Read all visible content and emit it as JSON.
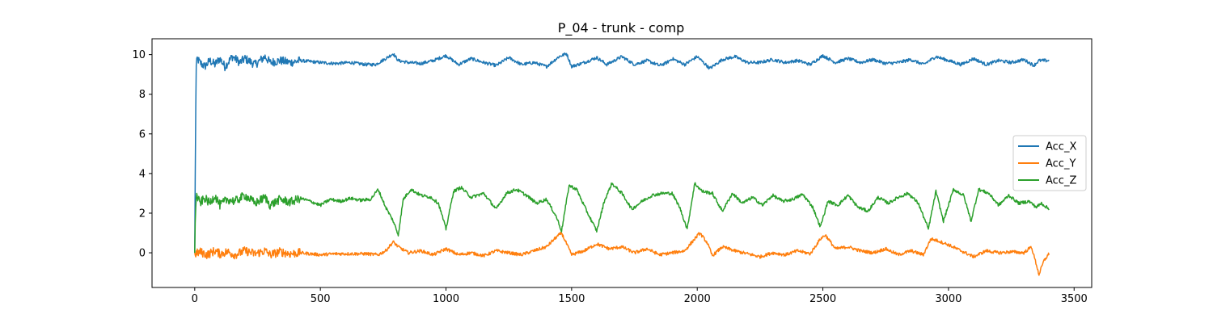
{
  "chart_data": {
    "type": "line",
    "title": "P_04 - trunk - comp",
    "xlabel": "",
    "ylabel": "",
    "xlim": [
      -170,
      3570
    ],
    "ylim": [
      -1.75,
      10.8
    ],
    "xticks": [
      0,
      500,
      1000,
      1500,
      2000,
      2500,
      3000,
      3500
    ],
    "yticks": [
      0,
      2,
      4,
      6,
      8,
      10
    ],
    "grid": false,
    "legend_position": "center-right",
    "series": [
      {
        "name": "Acc_X",
        "color": "#1f77b4",
        "x": [
          0,
          5,
          10,
          20,
          40,
          60,
          80,
          100,
          120,
          150,
          180,
          200,
          240,
          280,
          300,
          340,
          380,
          420,
          460,
          500,
          560,
          620,
          680,
          720,
          760,
          790,
          810,
          850,
          900,
          950,
          1000,
          1050,
          1100,
          1150,
          1200,
          1250,
          1300,
          1350,
          1400,
          1450,
          1480,
          1500,
          1550,
          1600,
          1640,
          1700,
          1750,
          1800,
          1850,
          1880,
          1900,
          1950,
          2000,
          2050,
          2100,
          2150,
          2200,
          2250,
          2300,
          2350,
          2400,
          2450,
          2500,
          2550,
          2600,
          2650,
          2700,
          2750,
          2800,
          2850,
          2900,
          2950,
          3000,
          3050,
          3100,
          3150,
          3200,
          3250,
          3300,
          3340,
          3360,
          3400
        ],
        "values": [
          0,
          9.3,
          9.8,
          9.6,
          9.4,
          9.7,
          9.5,
          9.8,
          9.4,
          9.9,
          9.6,
          9.8,
          9.5,
          9.9,
          9.6,
          9.7,
          9.6,
          9.7,
          9.65,
          9.6,
          9.55,
          9.6,
          9.5,
          9.5,
          9.8,
          10.05,
          9.7,
          9.6,
          9.55,
          9.7,
          9.95,
          9.5,
          9.8,
          9.6,
          9.45,
          9.85,
          9.5,
          9.6,
          9.4,
          9.9,
          10.05,
          9.4,
          9.6,
          9.85,
          9.5,
          9.9,
          9.5,
          9.7,
          9.45,
          9.6,
          9.8,
          9.5,
          9.9,
          9.3,
          9.75,
          9.9,
          9.6,
          9.6,
          9.75,
          9.6,
          9.7,
          9.5,
          9.95,
          9.6,
          9.8,
          9.6,
          9.75,
          9.55,
          9.6,
          9.75,
          9.5,
          9.9,
          9.7,
          9.5,
          9.8,
          9.5,
          9.7,
          9.6,
          9.75,
          9.45,
          9.7,
          9.7
        ]
      },
      {
        "name": "Acc_Y",
        "color": "#ff7f0e",
        "x": [
          0,
          5,
          20,
          50,
          80,
          100,
          130,
          160,
          200,
          240,
          280,
          300,
          340,
          380,
          420,
          460,
          500,
          560,
          620,
          680,
          730,
          760,
          790,
          810,
          850,
          900,
          950,
          1000,
          1050,
          1100,
          1150,
          1200,
          1250,
          1300,
          1350,
          1400,
          1440,
          1460,
          1500,
          1550,
          1600,
          1650,
          1700,
          1750,
          1800,
          1850,
          1900,
          1950,
          1990,
          2010,
          2040,
          2060,
          2100,
          2150,
          2200,
          2250,
          2300,
          2350,
          2400,
          2450,
          2490,
          2510,
          2550,
          2600,
          2650,
          2700,
          2750,
          2800,
          2850,
          2900,
          2930,
          2960,
          3000,
          3050,
          3100,
          3150,
          3200,
          3250,
          3300,
          3330,
          3350,
          3360,
          3380,
          3400
        ],
        "values": [
          0,
          -0.05,
          0.05,
          -0.1,
          0.1,
          -0.05,
          0.05,
          -0.1,
          0.1,
          -0.05,
          0.1,
          -0.1,
          0.05,
          -0.05,
          0.0,
          -0.05,
          -0.1,
          -0.05,
          -0.05,
          -0.05,
          -0.1,
          0.1,
          0.55,
          0.3,
          0.0,
          0.1,
          -0.1,
          0.2,
          -0.1,
          0.0,
          -0.15,
          0.1,
          0.0,
          -0.1,
          0.1,
          0.3,
          0.8,
          1.0,
          -0.1,
          0.1,
          0.45,
          0.2,
          0.3,
          0.0,
          0.2,
          -0.1,
          0.0,
          0.1,
          0.7,
          1.0,
          0.5,
          -0.15,
          0.3,
          0.1,
          -0.05,
          -0.2,
          0.0,
          -0.1,
          0.1,
          -0.05,
          0.7,
          0.9,
          0.2,
          0.3,
          0.1,
          0.0,
          0.2,
          -0.1,
          0.1,
          -0.1,
          0.7,
          0.6,
          0.4,
          0.1,
          -0.2,
          0.1,
          0.0,
          0.05,
          0.0,
          0.3,
          -0.6,
          -1.1,
          -0.4,
          -0.05
        ]
      },
      {
        "name": "Acc_Z",
        "color": "#2ca02c",
        "x": [
          0,
          3,
          8,
          20,
          40,
          60,
          80,
          100,
          130,
          160,
          200,
          240,
          280,
          300,
          340,
          380,
          420,
          460,
          500,
          540,
          580,
          620,
          660,
          700,
          730,
          760,
          790,
          810,
          830,
          860,
          900,
          940,
          970,
          1000,
          1030,
          1060,
          1100,
          1150,
          1200,
          1240,
          1280,
          1320,
          1360,
          1400,
          1440,
          1460,
          1490,
          1520,
          1560,
          1600,
          1630,
          1660,
          1700,
          1740,
          1780,
          1820,
          1860,
          1900,
          1930,
          1960,
          1990,
          2020,
          2060,
          2100,
          2140,
          2180,
          2220,
          2260,
          2300,
          2340,
          2380,
          2420,
          2460,
          2490,
          2520,
          2560,
          2600,
          2640,
          2680,
          2720,
          2760,
          2800,
          2840,
          2880,
          2920,
          2950,
          2980,
          3020,
          3060,
          3090,
          3120,
          3160,
          3200,
          3240,
          3280,
          3320,
          3350,
          3370,
          3400
        ],
        "values": [
          0,
          2.3,
          2.9,
          2.5,
          2.75,
          2.5,
          2.9,
          2.4,
          2.7,
          2.6,
          2.9,
          2.5,
          2.8,
          2.4,
          2.7,
          2.55,
          2.75,
          2.6,
          2.4,
          2.7,
          2.6,
          2.75,
          2.65,
          2.7,
          3.2,
          2.3,
          1.6,
          0.9,
          2.7,
          3.2,
          2.9,
          2.8,
          2.5,
          1.2,
          3.1,
          3.3,
          2.8,
          3.0,
          2.2,
          3.0,
          3.2,
          2.9,
          2.5,
          2.7,
          1.8,
          1.1,
          3.4,
          3.2,
          2.1,
          1.1,
          2.6,
          3.5,
          3.0,
          2.2,
          2.6,
          2.9,
          3.0,
          3.0,
          2.3,
          1.2,
          3.5,
          3.1,
          3.0,
          2.1,
          3.0,
          2.5,
          2.8,
          2.4,
          2.9,
          2.6,
          2.7,
          2.95,
          2.3,
          1.3,
          2.6,
          2.4,
          2.9,
          2.3,
          2.1,
          2.8,
          2.5,
          2.8,
          3.0,
          2.5,
          1.2,
          3.1,
          1.6,
          3.2,
          2.9,
          1.6,
          3.2,
          3.0,
          2.4,
          2.9,
          2.5,
          2.6,
          2.3,
          2.5,
          2.2
        ]
      }
    ]
  }
}
